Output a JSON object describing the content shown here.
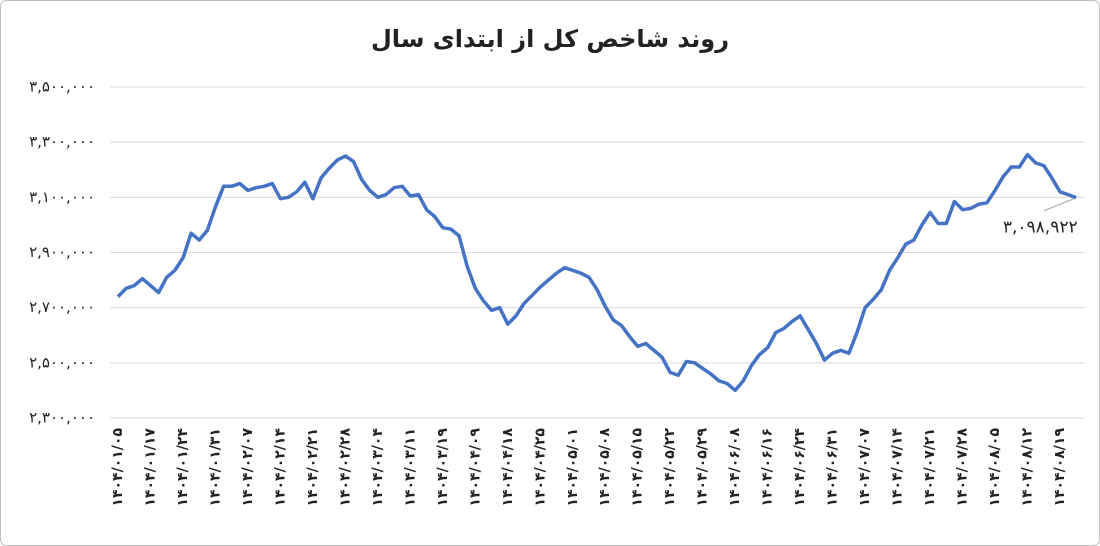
{
  "chart_data": {
    "type": "line",
    "title": "روند شاخص کل از ابتدای سال",
    "categories": [
      "۱۴۰۴/۰۱/۰۵",
      null,
      null,
      null,
      "۱۴۰۴/۰۱/۱۷",
      null,
      null,
      null,
      "۱۴۰۴/۰۱/۲۴",
      null,
      null,
      null,
      "۱۴۰۴/۰۱/۳۱",
      null,
      null,
      null,
      "۱۴۰۴/۰۲/۰۷",
      null,
      null,
      null,
      "۱۴۰۴/۰۲/۱۴",
      null,
      null,
      null,
      "۱۴۰۴/۰۲/۲۱",
      null,
      null,
      null,
      "۱۴۰۴/۰۲/۲۸",
      null,
      null,
      null,
      "۱۴۰۴/۰۳/۰۴",
      null,
      null,
      null,
      "۱۴۰۴/۰۳/۱۱",
      null,
      null,
      null,
      "۱۴۰۴/۰۳/۱۹",
      null,
      null,
      null,
      "۱۴۰۴/۰۴/۰۹",
      null,
      null,
      null,
      "۱۴۰۴/۰۴/۱۸",
      null,
      null,
      null,
      "۱۴۰۴/۰۴/۲۵",
      null,
      null,
      null,
      "۱۴۰۴/۰۵/۰۱",
      null,
      null,
      null,
      "۱۴۰۴/۰۵/۰۸",
      null,
      null,
      null,
      "۱۴۰۴/۰۵/۱۵",
      null,
      null,
      null,
      "۱۴۰۴/۰۵/۲۲",
      null,
      null,
      null,
      "۱۴۰۴/۰۵/۲۹",
      null,
      null,
      null,
      "۱۴۰۴/۰۶/۰۸",
      null,
      null,
      null,
      "۱۴۰۴/۰۶/۱۶",
      null,
      null,
      null,
      "۱۴۰۴/۰۶/۲۴",
      null,
      null,
      null,
      "۱۴۰۴/۰۶/۳۱",
      null,
      null,
      null,
      "۱۴۰۴/۰۷/۰۷",
      null,
      null,
      null,
      "۱۴۰۴/۰۷/۱۴",
      null,
      null,
      null,
      "۱۴۰۴/۰۷/۲۱",
      null,
      null,
      null,
      "۱۴۰۴/۰۷/۲۸",
      null,
      null,
      null,
      "۱۴۰۴/۰۸/۰۵",
      null,
      null,
      null,
      "۱۴۰۴/۰۸/۱۲",
      null,
      null,
      null,
      "۱۴۰۴/۰۸/۱۹",
      null,
      null
    ],
    "series": [
      {
        "color": "#4472c4",
        "values": [
          2740000,
          2770000,
          2780000,
          2805000,
          2780000,
          2755000,
          2810000,
          2835000,
          2880000,
          2970000,
          2945000,
          2980000,
          3065000,
          3140000,
          3140000,
          3150000,
          3125000,
          3135000,
          3140000,
          3150000,
          3095000,
          3100000,
          3120000,
          3155000,
          3095000,
          3170000,
          3205000,
          3235000,
          3250000,
          3230000,
          3165000,
          3125000,
          3100000,
          3110000,
          3135000,
          3140000,
          3105000,
          3110000,
          3055000,
          3030000,
          2990000,
          2985000,
          2960000,
          2850000,
          2770000,
          2725000,
          2690000,
          2700000,
          2640000,
          2670000,
          2715000,
          2745000,
          2775000,
          2800000,
          2825000,
          2845000,
          2835000,
          2825000,
          2810000,
          2765000,
          2705000,
          2655000,
          2635000,
          2595000,
          2560000,
          2570000,
          2545000,
          2520000,
          2465000,
          2455000,
          2505000,
          2500000,
          2480000,
          2460000,
          2435000,
          2425000,
          2400000,
          2435000,
          2490000,
          2530000,
          2555000,
          2610000,
          2625000,
          2650000,
          2670000,
          2620000,
          2570000,
          2510000,
          2535000,
          2545000,
          2535000,
          2610000,
          2700000,
          2730000,
          2765000,
          2835000,
          2880000,
          2930000,
          2945000,
          3000000,
          3045000,
          3005000,
          3005000,
          3085000,
          3055000,
          3060000,
          3075000,
          3080000,
          3125000,
          3175000,
          3210000,
          3210000,
          3255000,
          3225000,
          3215000,
          3170000,
          3120000,
          3110000,
          3098922
        ],
        "value_labels": [
          null,
          null,
          null,
          null,
          null,
          null,
          null,
          null,
          null,
          null,
          null,
          null,
          null,
          null,
          null,
          null,
          null,
          null,
          null,
          null,
          null,
          null,
          null,
          null,
          null,
          null,
          null,
          null,
          null,
          null,
          null,
          null,
          null,
          null,
          null,
          null,
          null,
          null,
          null,
          null,
          null,
          null,
          null,
          null,
          null,
          null,
          null,
          null,
          null,
          null,
          null,
          null,
          null,
          null,
          null,
          null,
          null,
          null,
          null,
          null,
          null,
          null,
          null,
          null,
          null,
          null,
          null,
          null,
          null,
          null,
          null,
          null,
          null,
          null,
          null,
          null,
          null,
          null,
          null,
          null,
          null,
          null,
          null,
          null,
          null,
          null,
          null,
          null,
          null,
          null,
          null,
          null,
          null,
          null,
          null,
          null,
          null,
          null,
          null,
          null,
          null,
          null,
          null,
          null,
          null,
          null,
          null,
          null,
          null,
          null,
          null,
          null,
          null,
          null,
          null,
          null,
          null,
          null,
          "۳,۰۹۸,۹۲۲"
        ]
      }
    ],
    "ylim": [
      2300000,
      3500000
    ],
    "yticks": [
      {
        "value": 2300000,
        "label": "۲,۳۰۰,۰۰۰"
      },
      {
        "value": 2500000,
        "label": "۲,۵۰۰,۰۰۰"
      },
      {
        "value": 2700000,
        "label": "۲,۷۰۰,۰۰۰"
      },
      {
        "value": 2900000,
        "label": "۲,۹۰۰,۰۰۰"
      },
      {
        "value": 3100000,
        "label": "۳,۱۰۰,۰۰۰"
      },
      {
        "value": 3300000,
        "label": "۳,۳۰۰,۰۰۰"
      },
      {
        "value": 3500000,
        "label": "۳,۵۰۰,۰۰۰"
      }
    ],
    "grid": true
  }
}
